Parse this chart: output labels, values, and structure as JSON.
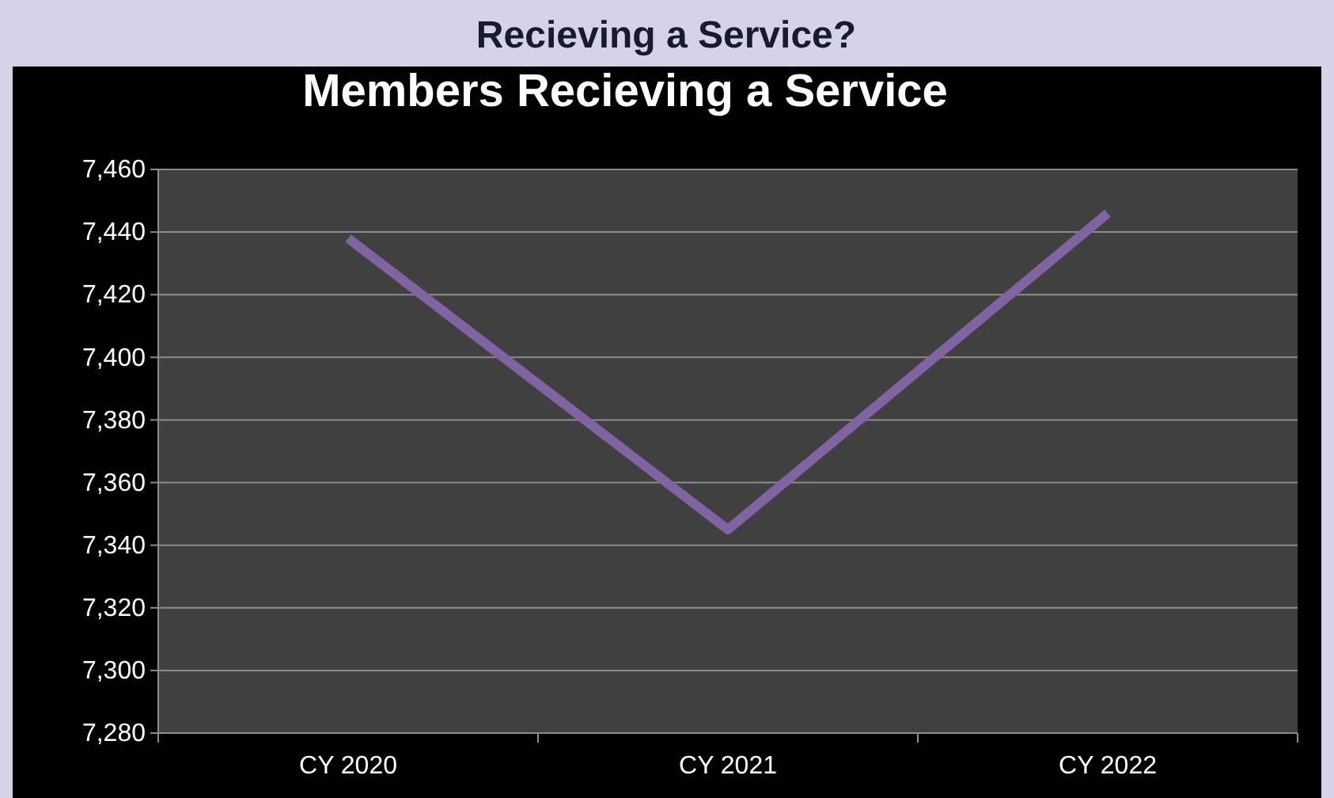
{
  "chart_data": {
    "type": "line",
    "title": "Members Recieving a Service",
    "annotations": [
      "Recieving a Service?"
    ],
    "categories": [
      "CY 2020",
      "CY 2021",
      "CY 2022"
    ],
    "series": [
      {
        "color": "#8064a2",
        "values": [
          7438,
          7345,
          7446
        ]
      }
    ],
    "ylim": [
      7280,
      7460
    ],
    "yticks": [
      {
        "value": 7280,
        "label": "7,280"
      },
      {
        "value": 7300,
        "label": "7,300"
      },
      {
        "value": 7320,
        "label": "7,320"
      },
      {
        "value": 7340,
        "label": "7,340"
      },
      {
        "value": 7360,
        "label": "7,360"
      },
      {
        "value": 7380,
        "label": "7,380"
      },
      {
        "value": 7400,
        "label": "7,400"
      },
      {
        "value": 7420,
        "label": "7,420"
      },
      {
        "value": 7440,
        "label": "7,440"
      },
      {
        "value": 7460,
        "label": "7,460"
      }
    ],
    "grid": "y",
    "marker": "none",
    "line_style": "solid"
  }
}
